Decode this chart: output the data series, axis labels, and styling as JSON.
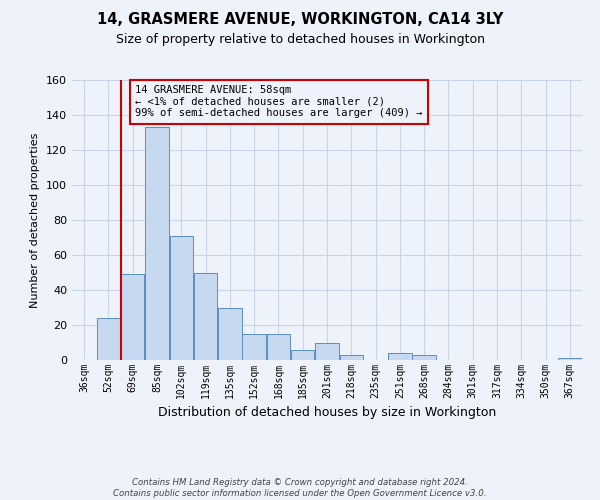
{
  "title": "14, GRASMERE AVENUE, WORKINGTON, CA14 3LY",
  "subtitle": "Size of property relative to detached houses in Workington",
  "xlabel": "Distribution of detached houses by size in Workington",
  "ylabel": "Number of detached properties",
  "bin_labels": [
    "36sqm",
    "52sqm",
    "69sqm",
    "85sqm",
    "102sqm",
    "119sqm",
    "135sqm",
    "152sqm",
    "168sqm",
    "185sqm",
    "201sqm",
    "218sqm",
    "235sqm",
    "251sqm",
    "268sqm",
    "284sqm",
    "301sqm",
    "317sqm",
    "334sqm",
    "350sqm",
    "367sqm"
  ],
  "bar_values": [
    0,
    24,
    49,
    133,
    71,
    50,
    30,
    15,
    15,
    6,
    10,
    3,
    0,
    4,
    3,
    0,
    0,
    0,
    0,
    0,
    1
  ],
  "bar_color": "#c6d9f0",
  "bar_edge_color": "#5a8fc3",
  "vline_color": "#cc0000",
  "annotation_text": "14 GRASMERE AVENUE: 58sqm\n← <1% of detached houses are smaller (2)\n99% of semi-detached houses are larger (409) →",
  "annotation_box_color": "#cc0000",
  "ylim": [
    0,
    160
  ],
  "yticks": [
    0,
    20,
    40,
    60,
    80,
    100,
    120,
    140,
    160
  ],
  "grid_color": "#c8d4e8",
  "background_color": "#eef2fa",
  "footer_line1": "Contains HM Land Registry data © Crown copyright and database right 2024.",
  "footer_line2": "Contains public sector information licensed under the Open Government Licence v3.0."
}
